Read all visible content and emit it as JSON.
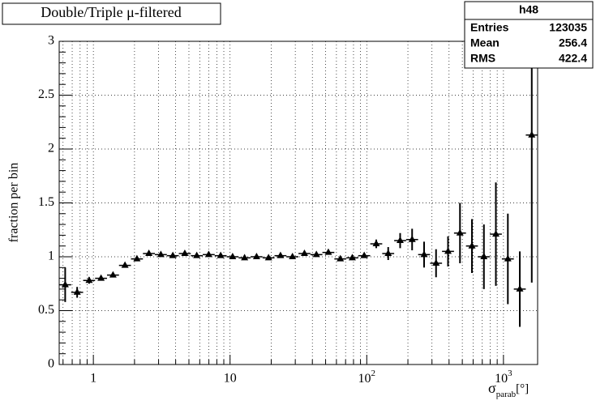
{
  "chart_data": {
    "type": "errorbar",
    "title": "Double/Triple μ-filtered",
    "y_label": "fraction per bin",
    "x_label": {
      "symbol": "σ",
      "subscript": "parab",
      "unit": "[°]"
    },
    "stats": {
      "name": "h48",
      "rows": [
        [
          "Entries",
          "123035"
        ],
        [
          "Mean",
          "256.4"
        ],
        [
          "RMS",
          "422.4"
        ]
      ]
    },
    "x_log": true,
    "grid": true,
    "color": "#000000",
    "xlim": [
      0.5623,
      1778
    ],
    "ylim": [
      0,
      3
    ],
    "xticks": [
      1,
      10,
      {
        "value": 100,
        "label": "10",
        "exponent": "2"
      },
      {
        "value": 1000,
        "label": "10",
        "exponent": "3"
      }
    ],
    "yticks": [
      0,
      0.5,
      1,
      1.5,
      2,
      2.5,
      3
    ],
    "x": [
      0.622,
      0.761,
      0.931,
      1.138,
      1.392,
      1.703,
      2.083,
      2.548,
      3.117,
      3.813,
      4.665,
      5.706,
      6.98,
      8.535,
      10.44,
      12.77,
      15.63,
      19.12,
      23.38,
      28.61,
      35.0,
      42.81,
      52.37,
      64.07,
      78.38,
      95.8,
      117.3,
      143.5,
      175.5,
      214.7,
      262.7,
      321.3,
      393.1,
      480.9,
      588.2,
      719.6,
      880.2,
      1077,
      1317,
      1611
    ],
    "values": [
      0.74,
      0.67,
      0.78,
      0.8,
      0.83,
      0.92,
      0.98,
      1.03,
      1.02,
      1.01,
      1.03,
      1.01,
      1.02,
      1.01,
      1.0,
      0.99,
      1.0,
      0.99,
      1.01,
      1.0,
      1.03,
      1.02,
      1.04,
      0.98,
      0.99,
      1.01,
      1.12,
      1.03,
      1.15,
      1.16,
      1.02,
      0.94,
      1.05,
      1.22,
      1.1,
      1.0,
      1.21,
      0.98,
      0.7,
      2.13
    ],
    "errors": [
      0.16,
      0.05,
      0.03,
      0.02,
      0.02,
      0.02,
      0.02,
      0.015,
      0.015,
      0.015,
      0.015,
      0.015,
      0.015,
      0.015,
      0.015,
      0.015,
      0.015,
      0.015,
      0.015,
      0.015,
      0.015,
      0.015,
      0.02,
      0.02,
      0.02,
      0.02,
      0.04,
      0.06,
      0.07,
      0.1,
      0.12,
      0.13,
      0.14,
      0.28,
      0.25,
      0.3,
      0.48,
      0.42,
      0.35,
      1.37
    ]
  }
}
